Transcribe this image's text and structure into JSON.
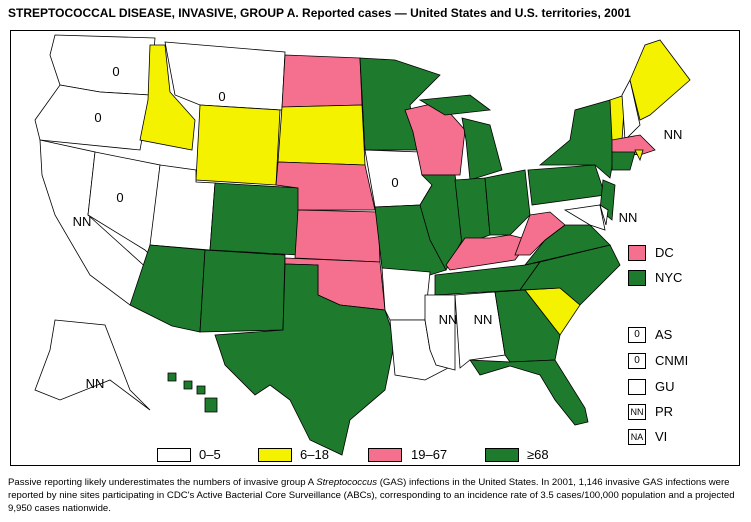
{
  "title": "STREPTOCOCCAL DISEASE, INVASIVE, GROUP A. Reported cases — United States and U.S. territories, 2001",
  "colors": {
    "c0_5": "#ffffff",
    "c6_18": "#f5f200",
    "c19_67": "#f5708f",
    "c68": "#1e7a2c"
  },
  "legend": [
    {
      "label": "0–5",
      "cat": "c0_5"
    },
    {
      "label": "6–18",
      "cat": "c6_18"
    },
    {
      "label": "19–67",
      "cat": "c19_67"
    },
    {
      "label": "≥68",
      "cat": "c68"
    }
  ],
  "special_areas": [
    {
      "label": "DC",
      "cat": "c19_67"
    },
    {
      "label": "NYC",
      "cat": "c68"
    }
  ],
  "territories": [
    {
      "label": "AS",
      "value": "0"
    },
    {
      "label": "CNMI",
      "value": "0"
    },
    {
      "label": "GU",
      "value": ""
    },
    {
      "label": "PR",
      "value": "NN"
    },
    {
      "label": "VI",
      "value": "NA"
    }
  ],
  "states": {
    "WA": {
      "cat": "c0_5",
      "label": "0"
    },
    "OR": {
      "cat": "c0_5",
      "label": "0"
    },
    "CA": {
      "cat": "c0_5",
      "label": "NN"
    },
    "NV": {
      "cat": "c0_5",
      "label": "0"
    },
    "ID": {
      "cat": "c6_18"
    },
    "MT": {
      "cat": "c0_5",
      "label": "0"
    },
    "WY": {
      "cat": "c6_18"
    },
    "UT": {
      "cat": "c0_5"
    },
    "CO": {
      "cat": "c68"
    },
    "AZ": {
      "cat": "c68"
    },
    "NM": {
      "cat": "c68"
    },
    "ND": {
      "cat": "c19_67"
    },
    "SD": {
      "cat": "c6_18"
    },
    "NE": {
      "cat": "c19_67"
    },
    "KS": {
      "cat": "c19_67"
    },
    "OK": {
      "cat": "c19_67"
    },
    "TX": {
      "cat": "c68"
    },
    "MN": {
      "cat": "c68"
    },
    "IA": {
      "cat": "c0_5",
      "label": "0"
    },
    "MO": {
      "cat": "c68"
    },
    "AR": {
      "cat": "c0_5"
    },
    "LA": {
      "cat": "c0_5"
    },
    "WI": {
      "cat": "c19_67"
    },
    "IL": {
      "cat": "c68"
    },
    "MI": {
      "cat": "c68"
    },
    "IN": {
      "cat": "c68"
    },
    "OH": {
      "cat": "c68"
    },
    "KY": {
      "cat": "c19_67"
    },
    "TN": {
      "cat": "c68"
    },
    "MS": {
      "cat": "c0_5",
      "label": "NN"
    },
    "AL": {
      "cat": "c0_5",
      "label": "NN"
    },
    "GA": {
      "cat": "c68"
    },
    "FL": {
      "cat": "c68"
    },
    "SC": {
      "cat": "c6_18"
    },
    "NC": {
      "cat": "c68"
    },
    "VA": {
      "cat": "c68"
    },
    "WV": {
      "cat": "c19_67"
    },
    "PA": {
      "cat": "c68"
    },
    "NY": {
      "cat": "c68"
    },
    "NJ": {
      "cat": "c68"
    },
    "MD": {
      "cat": "c0_5"
    },
    "DE": {
      "cat": "c0_5",
      "label": "NN"
    },
    "VT": {
      "cat": "c6_18"
    },
    "NH": {
      "cat": "c0_5",
      "label": "NN"
    },
    "ME": {
      "cat": "c6_18"
    },
    "MA": {
      "cat": "c19_67"
    },
    "RI": {
      "cat": "c6_18"
    },
    "CT": {
      "cat": "c68"
    },
    "AK": {
      "cat": "c0_5",
      "label": "NN"
    },
    "HI": {
      "cat": "c68"
    }
  },
  "footnote_parts": [
    "Passive reporting likely underestimates the numbers of invasive group A ",
    "Streptococcus",
    " (GAS) infections in the United States. In 2001, 1,146 invasive GAS infections were reported by nine sites participating in CDC's Active Bacterial Core Surveillance (ABCs), corresponding to an incidence rate of 3.5 cases/100,000 population and a projected 9,950 cases nationwide."
  ]
}
